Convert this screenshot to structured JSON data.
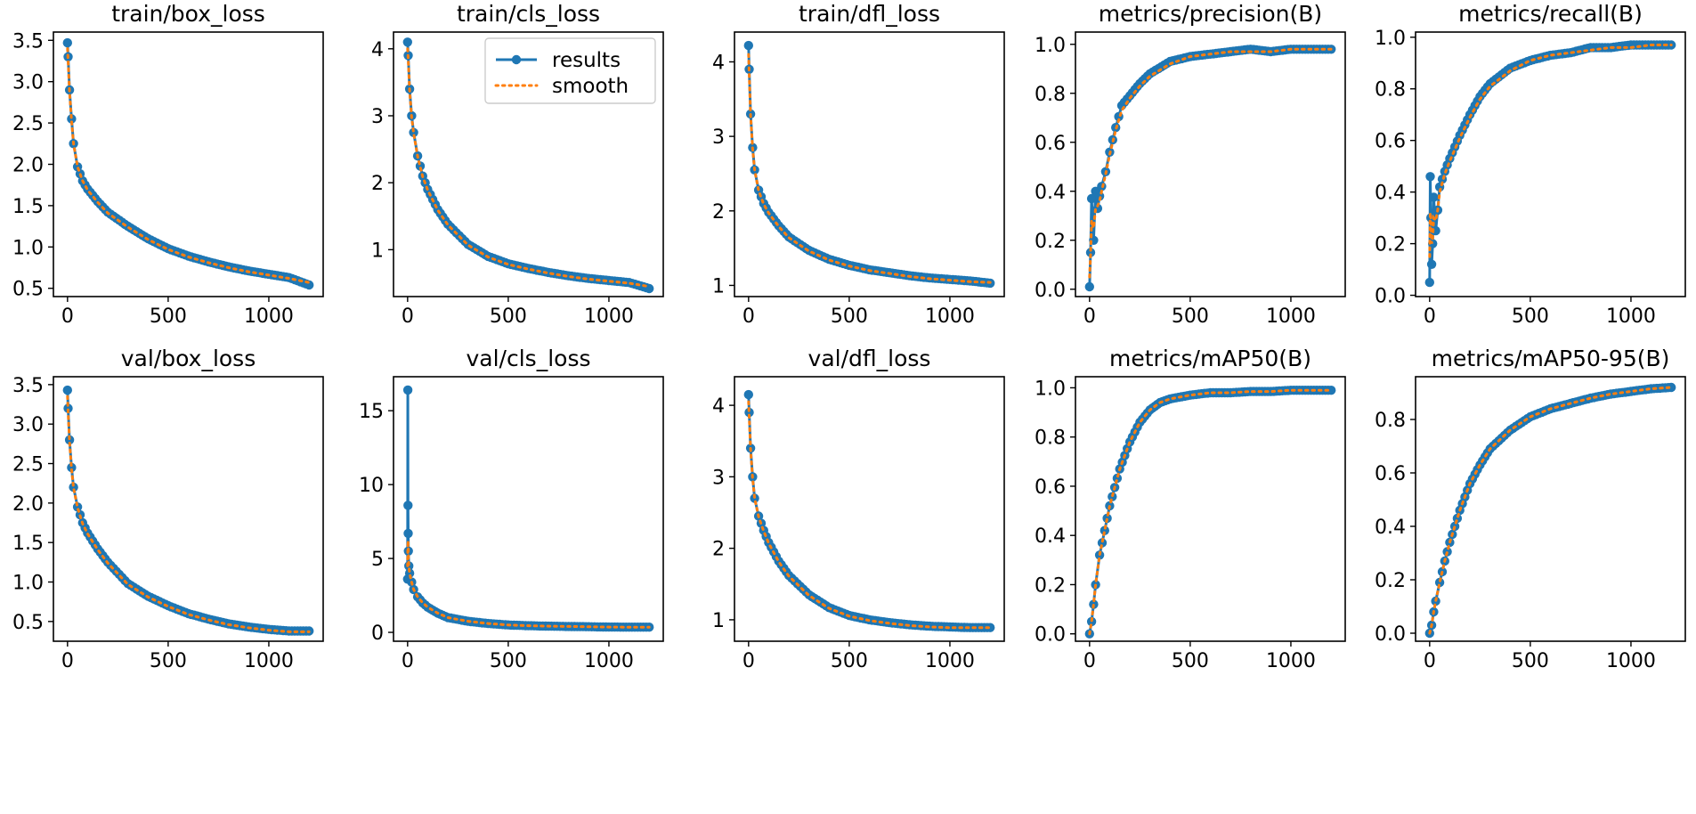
{
  "figure": {
    "colors": {
      "results": "#1f77b4",
      "smooth": "#ff7f0e",
      "frame": "#000000",
      "legend_edge": "#cccccc"
    },
    "legend": {
      "entries": [
        "results",
        "smooth"
      ],
      "location": "upper-right of train/cls_loss panel"
    }
  },
  "chart_data": [
    {
      "type": "line",
      "title": "train/box_loss",
      "xlabel": "",
      "ylabel": "",
      "xlim": [
        -70,
        1270
      ],
      "ylim": [
        0.4,
        3.6
      ],
      "xticks": [
        0,
        500,
        1000
      ],
      "yticks": [
        0.5,
        1.0,
        1.5,
        2.0,
        2.5,
        3.0,
        3.5
      ],
      "x": [
        0,
        3,
        10,
        20,
        30,
        50,
        75,
        100,
        150,
        200,
        300,
        400,
        500,
        600,
        700,
        800,
        900,
        1000,
        1100,
        1200
      ],
      "series": [
        {
          "name": "results",
          "values": [
            3.47,
            3.3,
            2.9,
            2.55,
            2.25,
            1.97,
            1.8,
            1.7,
            1.55,
            1.42,
            1.25,
            1.1,
            0.98,
            0.89,
            0.82,
            0.76,
            0.71,
            0.67,
            0.63,
            0.54
          ]
        },
        {
          "name": "smooth",
          "values": [
            3.4,
            3.25,
            2.88,
            2.53,
            2.25,
            1.97,
            1.8,
            1.69,
            1.54,
            1.41,
            1.24,
            1.09,
            0.97,
            0.88,
            0.81,
            0.75,
            0.7,
            0.66,
            0.62,
            0.57
          ]
        }
      ]
    },
    {
      "type": "line",
      "title": "train/cls_loss",
      "xlabel": "",
      "ylabel": "",
      "xlim": [
        -70,
        1270
      ],
      "ylim": [
        0.3,
        4.25
      ],
      "xticks": [
        0,
        500,
        1000
      ],
      "yticks": [
        1,
        2,
        3,
        4
      ],
      "x": [
        0,
        3,
        10,
        20,
        30,
        50,
        75,
        100,
        150,
        200,
        300,
        400,
        500,
        600,
        700,
        800,
        900,
        1000,
        1100,
        1200
      ],
      "series": [
        {
          "name": "results",
          "values": [
            4.1,
            3.9,
            3.4,
            3.0,
            2.75,
            2.4,
            2.1,
            1.9,
            1.6,
            1.38,
            1.08,
            0.9,
            0.79,
            0.72,
            0.66,
            0.61,
            0.57,
            0.54,
            0.51,
            0.42
          ]
        },
        {
          "name": "smooth",
          "values": [
            4.0,
            3.85,
            3.38,
            2.98,
            2.74,
            2.39,
            2.09,
            1.89,
            1.59,
            1.37,
            1.07,
            0.89,
            0.78,
            0.71,
            0.65,
            0.6,
            0.56,
            0.53,
            0.5,
            0.45
          ]
        }
      ],
      "legend": [
        "results",
        "smooth"
      ]
    },
    {
      "type": "line",
      "title": "train/dfl_loss",
      "xlabel": "",
      "ylabel": "",
      "xlim": [
        -70,
        1270
      ],
      "ylim": [
        0.85,
        4.4
      ],
      "xticks": [
        0,
        500,
        1000
      ],
      "yticks": [
        1,
        2,
        3,
        4
      ],
      "x": [
        0,
        3,
        10,
        20,
        30,
        50,
        75,
        100,
        150,
        200,
        300,
        400,
        500,
        600,
        700,
        800,
        900,
        1000,
        1100,
        1200
      ],
      "series": [
        {
          "name": "results",
          "values": [
            4.22,
            3.9,
            3.3,
            2.85,
            2.55,
            2.28,
            2.1,
            1.98,
            1.8,
            1.65,
            1.47,
            1.35,
            1.27,
            1.21,
            1.17,
            1.13,
            1.1,
            1.08,
            1.06,
            1.03
          ]
        },
        {
          "name": "smooth",
          "values": [
            4.1,
            3.85,
            3.28,
            2.84,
            2.55,
            2.27,
            2.09,
            1.97,
            1.79,
            1.64,
            1.46,
            1.34,
            1.26,
            1.2,
            1.16,
            1.12,
            1.09,
            1.07,
            1.05,
            1.04
          ]
        }
      ]
    },
    {
      "type": "line",
      "title": "metrics/precision(B)",
      "xlabel": "",
      "ylabel": "",
      "xlim": [
        -70,
        1270
      ],
      "ylim": [
        -0.03,
        1.05
      ],
      "xticks": [
        0,
        500,
        1000
      ],
      "yticks": [
        0.0,
        0.2,
        0.4,
        0.6,
        0.8,
        1.0
      ],
      "x": [
        0,
        5,
        10,
        20,
        30,
        40,
        50,
        60,
        80,
        100,
        130,
        160,
        200,
        250,
        300,
        400,
        500,
        600,
        700,
        800,
        900,
        1000,
        1100,
        1200
      ],
      "series": [
        {
          "name": "results",
          "values": [
            0.01,
            0.15,
            0.37,
            0.2,
            0.4,
            0.33,
            0.38,
            0.42,
            0.48,
            0.56,
            0.66,
            0.75,
            0.79,
            0.84,
            0.88,
            0.93,
            0.95,
            0.96,
            0.97,
            0.98,
            0.97,
            0.98,
            0.98,
            0.98
          ]
        },
        {
          "name": "smooth",
          "values": [
            0.05,
            0.14,
            0.28,
            0.25,
            0.33,
            0.34,
            0.36,
            0.4,
            0.47,
            0.55,
            0.65,
            0.73,
            0.78,
            0.83,
            0.87,
            0.92,
            0.95,
            0.96,
            0.97,
            0.97,
            0.97,
            0.98,
            0.98,
            0.98
          ]
        }
      ]
    },
    {
      "type": "line",
      "title": "metrics/recall(B)",
      "xlabel": "",
      "ylabel": "",
      "xlim": [
        -70,
        1270
      ],
      "ylim": [
        -0.005,
        1.02
      ],
      "xticks": [
        0,
        500,
        1000
      ],
      "yticks": [
        0.0,
        0.2,
        0.4,
        0.6,
        0.8,
        1.0
      ],
      "x": [
        0,
        3,
        6,
        10,
        15,
        20,
        30,
        40,
        50,
        75,
        100,
        150,
        200,
        250,
        300,
        400,
        500,
        600,
        700,
        800,
        900,
        1000,
        1100,
        1200
      ],
      "series": [
        {
          "name": "results",
          "values": [
            0.05,
            0.46,
            0.3,
            0.12,
            0.2,
            0.38,
            0.25,
            0.33,
            0.42,
            0.48,
            0.53,
            0.62,
            0.7,
            0.77,
            0.82,
            0.88,
            0.91,
            0.93,
            0.94,
            0.96,
            0.96,
            0.97,
            0.97,
            0.97
          ]
        },
        {
          "name": "smooth",
          "values": [
            0.15,
            0.32,
            0.3,
            0.2,
            0.22,
            0.3,
            0.29,
            0.33,
            0.4,
            0.47,
            0.52,
            0.61,
            0.69,
            0.76,
            0.81,
            0.87,
            0.91,
            0.93,
            0.94,
            0.95,
            0.96,
            0.96,
            0.97,
            0.97
          ]
        }
      ]
    },
    {
      "type": "line",
      "title": "val/box_loss",
      "xlabel": "",
      "ylabel": "",
      "xlim": [
        -70,
        1270
      ],
      "ylim": [
        0.25,
        3.6
      ],
      "xticks": [
        0,
        500,
        1000
      ],
      "yticks": [
        0.5,
        1.0,
        1.5,
        2.0,
        2.5,
        3.0,
        3.5
      ],
      "x": [
        0,
        3,
        10,
        20,
        30,
        50,
        75,
        100,
        150,
        200,
        300,
        400,
        500,
        600,
        700,
        800,
        900,
        1000,
        1100,
        1200
      ],
      "series": [
        {
          "name": "results",
          "values": [
            3.43,
            3.2,
            2.8,
            2.45,
            2.2,
            1.95,
            1.75,
            1.62,
            1.42,
            1.25,
            0.98,
            0.82,
            0.7,
            0.6,
            0.53,
            0.47,
            0.43,
            0.4,
            0.38,
            0.38
          ]
        },
        {
          "name": "smooth",
          "values": [
            3.35,
            3.15,
            2.78,
            2.43,
            2.19,
            1.94,
            1.74,
            1.61,
            1.41,
            1.24,
            0.97,
            0.81,
            0.69,
            0.59,
            0.52,
            0.46,
            0.42,
            0.39,
            0.37,
            0.37
          ]
        }
      ]
    },
    {
      "type": "line",
      "title": "val/cls_loss",
      "xlabel": "",
      "ylabel": "",
      "xlim": [
        -70,
        1270
      ],
      "ylim": [
        -0.6,
        17.3
      ],
      "xticks": [
        0,
        500,
        1000
      ],
      "yticks": [
        0,
        5,
        10,
        15
      ],
      "x": [
        0,
        1,
        2,
        3,
        4,
        6,
        10,
        20,
        30,
        50,
        75,
        100,
        150,
        200,
        300,
        400,
        500,
        600,
        700,
        800,
        900,
        1000,
        1100,
        1200
      ],
      "series": [
        {
          "name": "results",
          "values": [
            3.6,
            16.4,
            8.6,
            6.7,
            5.5,
            4.5,
            4.0,
            3.4,
            2.9,
            2.4,
            2.0,
            1.7,
            1.3,
            1.0,
            0.75,
            0.6,
            0.5,
            0.45,
            0.42,
            0.4,
            0.38,
            0.36,
            0.35,
            0.35
          ]
        },
        {
          "name": "smooth",
          "values": [
            4.5,
            5.5,
            6.2,
            5.9,
            5.2,
            4.5,
            4.0,
            3.4,
            2.9,
            2.4,
            2.0,
            1.7,
            1.3,
            1.0,
            0.75,
            0.6,
            0.5,
            0.45,
            0.42,
            0.4,
            0.38,
            0.36,
            0.35,
            0.35
          ]
        }
      ]
    },
    {
      "type": "line",
      "title": "val/dfl_loss",
      "xlabel": "",
      "ylabel": "",
      "xlim": [
        -70,
        1270
      ],
      "ylim": [
        0.7,
        4.4
      ],
      "xticks": [
        0,
        500,
        1000
      ],
      "yticks": [
        1,
        2,
        3,
        4
      ],
      "x": [
        0,
        3,
        10,
        20,
        30,
        50,
        75,
        100,
        150,
        200,
        300,
        400,
        500,
        600,
        700,
        800,
        900,
        1000,
        1100,
        1200
      ],
      "series": [
        {
          "name": "results",
          "values": [
            4.15,
            3.9,
            3.4,
            3.0,
            2.7,
            2.45,
            2.25,
            2.08,
            1.82,
            1.62,
            1.35,
            1.17,
            1.06,
            1.0,
            0.96,
            0.93,
            0.91,
            0.9,
            0.89,
            0.89
          ]
        },
        {
          "name": "smooth",
          "values": [
            4.05,
            3.85,
            3.38,
            2.98,
            2.7,
            2.44,
            2.24,
            2.07,
            1.81,
            1.61,
            1.34,
            1.16,
            1.05,
            0.99,
            0.95,
            0.92,
            0.9,
            0.89,
            0.89,
            0.89
          ]
        }
      ]
    },
    {
      "type": "line",
      "title": "metrics/mAP50(B)",
      "xlabel": "",
      "ylabel": "",
      "xlim": [
        -70,
        1270
      ],
      "ylim": [
        -0.03,
        1.045
      ],
      "xticks": [
        0,
        500,
        1000
      ],
      "yticks": [
        0.0,
        0.2,
        0.4,
        0.6,
        0.8,
        1.0
      ],
      "x": [
        0,
        10,
        20,
        30,
        50,
        75,
        100,
        150,
        200,
        250,
        300,
        350,
        400,
        500,
        600,
        700,
        800,
        900,
        1000,
        1100,
        1200
      ],
      "series": [
        {
          "name": "results",
          "values": [
            0.0,
            0.05,
            0.12,
            0.2,
            0.32,
            0.42,
            0.52,
            0.67,
            0.78,
            0.86,
            0.91,
            0.94,
            0.955,
            0.97,
            0.98,
            0.98,
            0.985,
            0.985,
            0.99,
            0.99,
            0.99
          ]
        },
        {
          "name": "smooth",
          "values": [
            0.0,
            0.05,
            0.12,
            0.2,
            0.32,
            0.42,
            0.52,
            0.67,
            0.78,
            0.86,
            0.91,
            0.94,
            0.955,
            0.97,
            0.98,
            0.98,
            0.985,
            0.985,
            0.99,
            0.99,
            0.99
          ]
        }
      ]
    },
    {
      "type": "line",
      "title": "metrics/mAP50-95(B)",
      "xlabel": "",
      "ylabel": "",
      "xlim": [
        -70,
        1270
      ],
      "ylim": [
        -0.03,
        0.96
      ],
      "xticks": [
        0,
        500,
        1000
      ],
      "yticks": [
        0.0,
        0.2,
        0.4,
        0.6,
        0.8
      ],
      "x": [
        0,
        10,
        20,
        30,
        50,
        75,
        100,
        150,
        200,
        250,
        300,
        400,
        500,
        600,
        700,
        800,
        900,
        1000,
        1100,
        1200
      ],
      "series": [
        {
          "name": "results",
          "values": [
            0.0,
            0.03,
            0.08,
            0.12,
            0.19,
            0.27,
            0.34,
            0.46,
            0.56,
            0.63,
            0.69,
            0.76,
            0.81,
            0.84,
            0.86,
            0.88,
            0.895,
            0.905,
            0.915,
            0.92
          ]
        },
        {
          "name": "smooth",
          "values": [
            0.0,
            0.03,
            0.08,
            0.12,
            0.19,
            0.27,
            0.34,
            0.46,
            0.56,
            0.63,
            0.69,
            0.76,
            0.81,
            0.84,
            0.86,
            0.88,
            0.895,
            0.905,
            0.915,
            0.92
          ]
        }
      ]
    }
  ]
}
